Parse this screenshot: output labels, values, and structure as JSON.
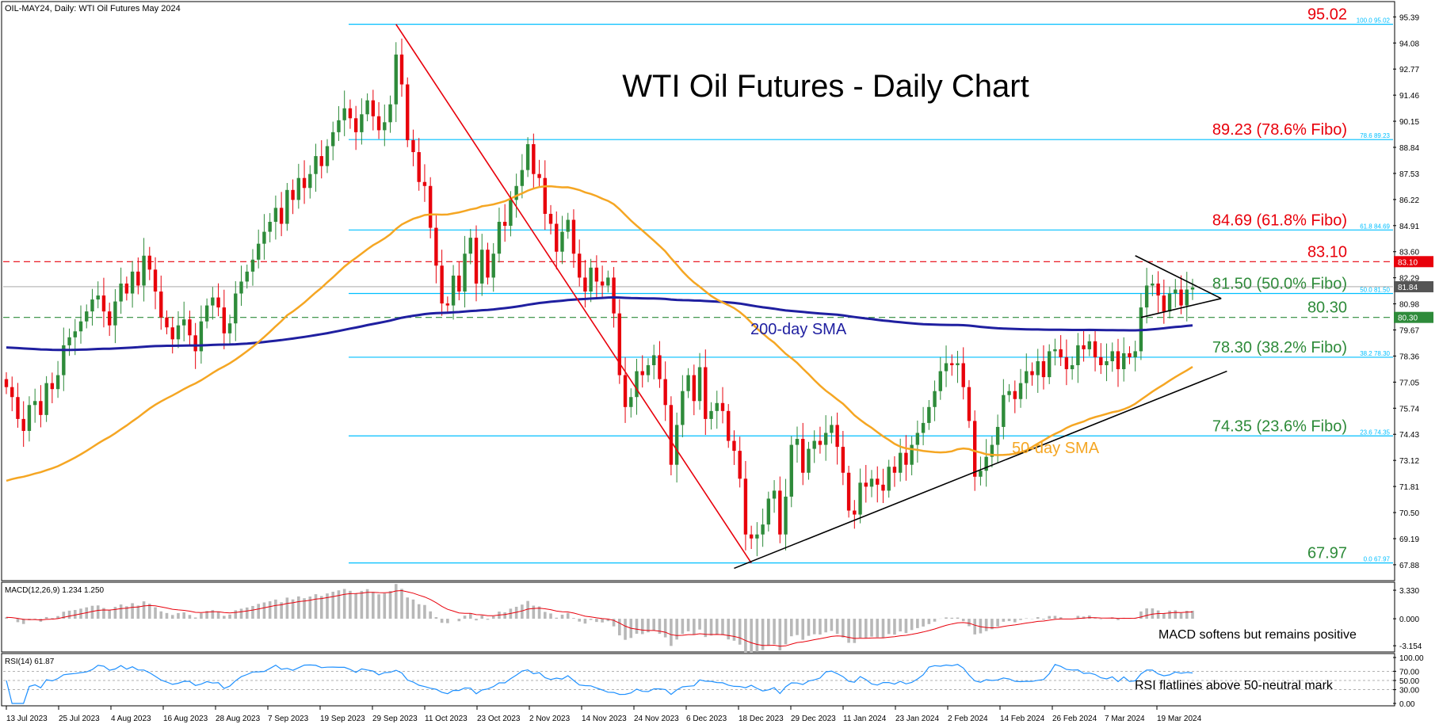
{
  "header": {
    "symbol_line": "OIL-MAY24, Daily:  WTI Oil Futures May 2024"
  },
  "chart_data": {
    "type": "candlestick",
    "title": "WTI Oil Futures - Daily Chart",
    "ylim": [
      67.2,
      96.0
    ],
    "y_ticks": [
      "95.39",
      "94.08",
      "92.77",
      "91.46",
      "90.15",
      "88.84",
      "87.53",
      "86.22",
      "84.91",
      "83.60",
      "82.29",
      "80.98",
      "79.67",
      "78.36",
      "77.05",
      "75.74",
      "74.43",
      "73.12",
      "71.81",
      "70.50",
      "69.19",
      "67.88"
    ],
    "x_ticks": [
      "13 Jul 2023",
      "25 Jul 2023",
      "4 Aug 2023",
      "16 Aug 2023",
      "28 Aug 2023",
      "7 Sep 2023",
      "19 Sep 2023",
      "29 Sep 2023",
      "11 Oct 2023",
      "23 Oct 2023",
      "2 Nov 2023",
      "14 Nov 2023",
      "24 Nov 2023",
      "6 Dec 2023",
      "18 Dec 2023",
      "29 Dec 2023",
      "11 Jan 2024",
      "23 Jan 2024",
      "2 Feb 2024",
      "14 Feb 2024",
      "26 Feb 2024",
      "7 Mar 2024",
      "19 Mar 2024"
    ],
    "close_prices": [
      76.8,
      76.3,
      75.2,
      74.6,
      75.9,
      76.1,
      75.4,
      77.0,
      76.7,
      77.4,
      78.9,
      79.3,
      79.6,
      80.1,
      80.6,
      81.2,
      81.4,
      80.6,
      79.9,
      81.1,
      82.0,
      81.5,
      82.6,
      81.9,
      83.4,
      82.7,
      81.6,
      80.3,
      79.8,
      79.2,
      79.9,
      80.2,
      79.4,
      78.6,
      80.1,
      80.9,
      81.3,
      80.8,
      79.5,
      80.0,
      81.5,
      82.1,
      82.6,
      83.2,
      84.0,
      84.6,
      85.1,
      85.8,
      85.0,
      86.7,
      86.2,
      87.3,
      86.8,
      87.5,
      88.4,
      87.9,
      88.9,
      89.6,
      90.2,
      90.8,
      90.3,
      89.6,
      90.5,
      91.2,
      90.4,
      89.7,
      90.1,
      91.0,
      93.5,
      92.0,
      89.2,
      88.6,
      87.1,
      86.9,
      84.8,
      82.9,
      81.0,
      80.9,
      82.4,
      81.6,
      83.5,
      84.3,
      82.0,
      83.7,
      82.3,
      83.5,
      85.1,
      84.9,
      86.2,
      86.9,
      87.7,
      89.0,
      87.5,
      87.3,
      85.5,
      85.0,
      83.6,
      84.6,
      85.2,
      83.5,
      82.3,
      81.6,
      82.8,
      82.1,
      81.9,
      82.3,
      80.5,
      77.4,
      75.8,
      76.3,
      77.6,
      77.4,
      77.9,
      78.4,
      77.2,
      75.9,
      72.9,
      74.9,
      76.6,
      77.4,
      76.1,
      77.8,
      75.2,
      75.6,
      76.0,
      75.6,
      74.1,
      73.6,
      72.2,
      69.4,
      69.2,
      69.4,
      69.9,
      71.2,
      71.6,
      69.4,
      71.3,
      73.9,
      74.2,
      72.5,
      73.7,
      74.1,
      73.9,
      74.5,
      74.9,
      73.8,
      72.5,
      70.6,
      70.4,
      72.0,
      71.8,
      72.2,
      71.9,
      71.6,
      72.8,
      72.5,
      73.5,
      72.9,
      73.9,
      74.5,
      75.0,
      75.8,
      76.6,
      77.6,
      78.0,
      77.9,
      78.0,
      76.8,
      75.1,
      72.3,
      72.6,
      73.3,
      73.9,
      74.8,
      76.4,
      76.6,
      76.2,
      77.0,
      77.6,
      77.4,
      78.1,
      77.3,
      78.6,
      78.7,
      78.3,
      77.7,
      77.9,
      78.9,
      78.7,
      79.1,
      78.3,
      77.9,
      78.1,
      78.6,
      77.7,
      78.5,
      78.3,
      78.6,
      80.8,
      81.9,
      82.0,
      81.4,
      80.6,
      81.5,
      81.7,
      80.9,
      81.7,
      81.8
    ],
    "levels": [
      {
        "label": "95.02",
        "value": 95.02,
        "tag": "100.0 95.02",
        "color": "#e8000b"
      },
      {
        "label": "89.23 (78.6% Fibo)",
        "value": 89.23,
        "tag": "78.6 89.23",
        "color": "#e8000b"
      },
      {
        "label": "84.69 (61.8% Fibo)",
        "value": 84.69,
        "tag": "61.8 84.69",
        "color": "#e8000b"
      },
      {
        "label": "83.10",
        "value": 83.1,
        "tag": "83.10",
        "color": "#e8000b",
        "dashed": true
      },
      {
        "label": "81.50 (50.0% Fibo)",
        "value": 81.5,
        "tag": "50.0 81.50",
        "color": "#2e8b3a"
      },
      {
        "label": "80.30",
        "value": 80.3,
        "tag": "80.30",
        "color": "#2e8b3a",
        "dashed": true
      },
      {
        "label": "78.30 (38.2% Fibo)",
        "value": 78.3,
        "tag": "38.2 78.30",
        "color": "#2e8b3a"
      },
      {
        "label": "74.35 (23.6% Fibo)",
        "value": 74.35,
        "tag": "23.6 74.35",
        "color": "#2e8b3a"
      },
      {
        "label": "67.97",
        "value": 67.97,
        "tag": "0.0 67.97",
        "color": "#2e8b3a"
      }
    ],
    "current_price": {
      "label": "81.84",
      "value": 81.84
    },
    "annotations": {
      "sma200_label": "200-day SMA",
      "sma50_label": "50-day SMA"
    },
    "colors": {
      "up": "#2e8b3a",
      "down": "#e8000b",
      "sma200": "#1f1fa0",
      "sma50": "#f5a623",
      "fibo": "#00bfff",
      "macd_hist": "#b8b8b8",
      "macd_signal": "#e8000b",
      "rsi": "#1e90ff"
    },
    "macd": {
      "header": "MACD(12,26,9) 1.234 1.250",
      "y_ticks": [
        "3.330",
        "0.000",
        "-3.154"
      ],
      "note": "MACD softens but remains positive"
    },
    "rsi": {
      "header": "RSI(14) 61.87",
      "y_ticks": [
        "100.00",
        "70.00",
        "50.00",
        "30.00",
        "0.00"
      ],
      "note": "RSI flatlines above 50-neutral mark"
    }
  }
}
